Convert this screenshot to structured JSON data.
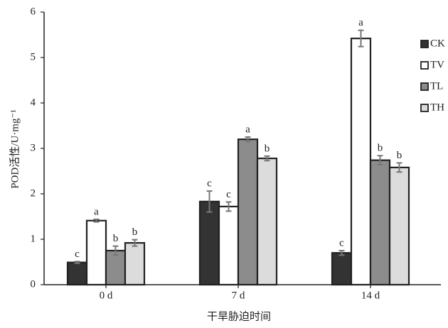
{
  "chart_data": {
    "type": "bar",
    "y_label": "POD活性/U·mg⁻¹",
    "x_label": "干旱胁迫时间",
    "categories": [
      "0 d",
      "7 d",
      "14 d"
    ],
    "series": [
      {
        "name": "CK",
        "color": "#333333",
        "values": [
          0.49,
          1.83,
          0.7
        ],
        "errors": [
          0.02,
          0.23,
          0.05
        ],
        "letters": [
          "c",
          "c",
          "c"
        ]
      },
      {
        "name": "TV",
        "color": "#ffffff",
        "values": [
          1.41,
          1.72,
          5.42
        ],
        "errors": [
          0.03,
          0.1,
          0.18
        ],
        "letters": [
          "a",
          "c",
          "a"
        ]
      },
      {
        "name": "TL",
        "color": "#8c8c8c",
        "values": [
          0.75,
          3.2,
          2.74
        ],
        "errors": [
          0.1,
          0.05,
          0.1
        ],
        "letters": [
          "b",
          "a",
          "b"
        ]
      },
      {
        "name": "TH",
        "color": "#dcdcdc",
        "values": [
          0.92,
          2.78,
          2.58
        ],
        "errors": [
          0.07,
          0.05,
          0.1
        ],
        "letters": [
          "b",
          "b",
          "b"
        ]
      }
    ],
    "ylim": [
      0,
      6
    ],
    "yticks": [
      0,
      1,
      2,
      3,
      4,
      5,
      6
    ]
  }
}
